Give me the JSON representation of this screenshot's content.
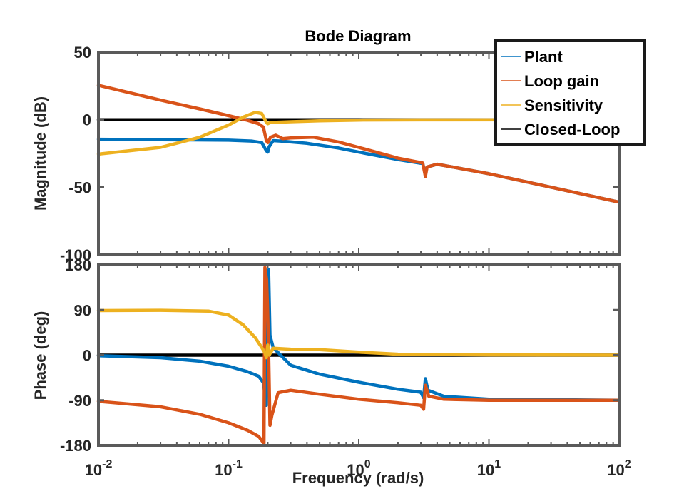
{
  "chart_data": {
    "type": "line",
    "title": "Bode Diagram",
    "xlabel": "Frequency  (rad/s)",
    "xscale": "log",
    "xlim": [
      0.01,
      100
    ],
    "xticks": [
      {
        "value": 0.01,
        "base": "10",
        "exp": "-2"
      },
      {
        "value": 0.1,
        "base": "10",
        "exp": "-1"
      },
      {
        "value": 1,
        "base": "10",
        "exp": "0"
      },
      {
        "value": 10,
        "base": "10",
        "exp": "1"
      },
      {
        "value": 100,
        "base": "10",
        "exp": "2"
      }
    ],
    "legend": {
      "location": "top-right",
      "entries": [
        "Plant",
        "Loop gain",
        "Sensitivity",
        "Closed-Loop"
      ]
    },
    "colors": {
      "Plant": "#0072BD",
      "Loop gain": "#D95319",
      "Sensitivity": "#EDB120",
      "Closed-Loop": "#000000",
      "axes": "#5a5a5a"
    },
    "panels": [
      {
        "id": "magnitude",
        "ylabel": "Magnitude (dB)",
        "ylim": [
          -100,
          50
        ],
        "yticks": [
          "50",
          "0",
          "-50",
          "-100"
        ],
        "ytick_values": [
          50,
          0,
          -50,
          -100
        ],
        "series": [
          {
            "name": "Closed-Loop",
            "points": [
              [
                0.01,
                0
              ],
              [
                100,
                0
              ]
            ]
          },
          {
            "name": "Plant",
            "points": [
              [
                0.01,
                -14.5
              ],
              [
                0.03,
                -14.8
              ],
              [
                0.1,
                -15.2
              ],
              [
                0.15,
                -15.8
              ],
              [
                0.18,
                -17
              ],
              [
                0.195,
                -23
              ],
              [
                0.2,
                -24
              ],
              [
                0.205,
                -20
              ],
              [
                0.22,
                -15.5
              ],
              [
                0.25,
                -15.8
              ],
              [
                0.4,
                -17.5
              ],
              [
                0.7,
                -21
              ],
              [
                1,
                -24
              ],
              [
                2,
                -29.5
              ],
              [
                3.1,
                -32.5
              ],
              [
                3.25,
                -40
              ],
              [
                3.35,
                -35
              ],
              [
                4,
                -33
              ],
              [
                10,
                -40
              ],
              [
                30,
                -50
              ],
              [
                100,
                -61
              ]
            ]
          },
          {
            "name": "Loop gain",
            "points": [
              [
                0.01,
                25.5
              ],
              [
                0.03,
                14.5
              ],
              [
                0.06,
                8
              ],
              [
                0.1,
                3
              ],
              [
                0.14,
                -0.5
              ],
              [
                0.17,
                -3
              ],
              [
                0.185,
                -5.5
              ],
              [
                0.195,
                -15.5
              ],
              [
                0.2,
                -17
              ],
              [
                0.21,
                -13
              ],
              [
                0.23,
                -11.5
              ],
              [
                0.26,
                -14
              ],
              [
                0.3,
                -13.5
              ],
              [
                0.45,
                -13
              ],
              [
                0.7,
                -16.5
              ],
              [
                1,
                -20.5
              ],
              [
                2,
                -28.5
              ],
              [
                3.1,
                -32
              ],
              [
                3.25,
                -42
              ],
              [
                3.35,
                -35
              ],
              [
                4,
                -33
              ],
              [
                10,
                -40
              ],
              [
                30,
                -50
              ],
              [
                100,
                -61
              ]
            ]
          },
          {
            "name": "Sensitivity",
            "points": [
              [
                0.01,
                -25.5
              ],
              [
                0.03,
                -20.5
              ],
              [
                0.06,
                -13
              ],
              [
                0.1,
                -4
              ],
              [
                0.13,
                2
              ],
              [
                0.16,
                5.5
              ],
              [
                0.18,
                4.5
              ],
              [
                0.195,
                -2
              ],
              [
                0.2,
                -3
              ],
              [
                0.21,
                -2
              ],
              [
                0.3,
                -1.5
              ],
              [
                0.5,
                -0.8
              ],
              [
                1,
                -0.3
              ],
              [
                3,
                -0.1
              ],
              [
                100,
                0
              ]
            ]
          }
        ]
      },
      {
        "id": "phase",
        "ylabel": "Phase (deg)",
        "ylim": [
          -180,
          180
        ],
        "yticks": [
          "180",
          "90",
          "0",
          "-90",
          "-180"
        ],
        "ytick_values": [
          180,
          90,
          0,
          -90,
          -180
        ],
        "series": [
          {
            "name": "Closed-Loop",
            "points": [
              [
                0.01,
                0
              ],
              [
                100,
                0
              ]
            ]
          },
          {
            "name": "Plant",
            "points": [
              [
                0.01,
                -1
              ],
              [
                0.03,
                -5
              ],
              [
                0.06,
                -12
              ],
              [
                0.1,
                -22
              ],
              [
                0.14,
                -33
              ],
              [
                0.17,
                -42
              ],
              [
                0.185,
                -55
              ],
              [
                0.195,
                -100
              ],
              [
                0.199,
                160
              ],
              [
                0.203,
                170
              ],
              [
                0.208,
                40
              ],
              [
                0.22,
                15
              ],
              [
                0.3,
                -20
              ],
              [
                0.5,
                -38
              ],
              [
                1,
                -54
              ],
              [
                2,
                -68
              ],
              [
                3.0,
                -74
              ],
              [
                3.15,
                -85
              ],
              [
                3.25,
                -47
              ],
              [
                3.4,
                -70
              ],
              [
                4.5,
                -82
              ],
              [
                10,
                -88
              ],
              [
                100,
                -90
              ]
            ]
          },
          {
            "name": "Loop gain",
            "points": [
              [
                0.01,
                -92
              ],
              [
                0.03,
                -103
              ],
              [
                0.06,
                -118
              ],
              [
                0.1,
                -135
              ],
              [
                0.14,
                -150
              ],
              [
                0.17,
                -162
              ],
              [
                0.187,
                -176
              ],
              [
                0.19,
                175
              ],
              [
                0.196,
                150
              ],
              [
                0.199,
                100
              ],
              [
                0.203,
                10
              ],
              [
                0.208,
                -140
              ],
              [
                0.215,
                -120
              ],
              [
                0.24,
                -75
              ],
              [
                0.3,
                -70
              ],
              [
                0.5,
                -78
              ],
              [
                1,
                -88
              ],
              [
                2,
                -95
              ],
              [
                3.0,
                -100
              ],
              [
                3.15,
                -108
              ],
              [
                3.25,
                -60
              ],
              [
                3.45,
                -82
              ],
              [
                4.5,
                -88
              ],
              [
                10,
                -90
              ],
              [
                100,
                -90
              ]
            ]
          },
          {
            "name": "Sensitivity",
            "points": [
              [
                0.01,
                89
              ],
              [
                0.03,
                89.5
              ],
              [
                0.07,
                88
              ],
              [
                0.1,
                80
              ],
              [
                0.13,
                60
              ],
              [
                0.16,
                35
              ],
              [
                0.18,
                15
              ],
              [
                0.19,
                5
              ],
              [
                0.195,
                -5
              ],
              [
                0.2,
                20
              ],
              [
                0.205,
                0
              ],
              [
                0.22,
                14
              ],
              [
                0.3,
                12
              ],
              [
                0.5,
                11
              ],
              [
                1,
                6
              ],
              [
                2,
                2
              ],
              [
                10,
                0.5
              ],
              [
                100,
                0
              ]
            ]
          }
        ]
      }
    ]
  }
}
